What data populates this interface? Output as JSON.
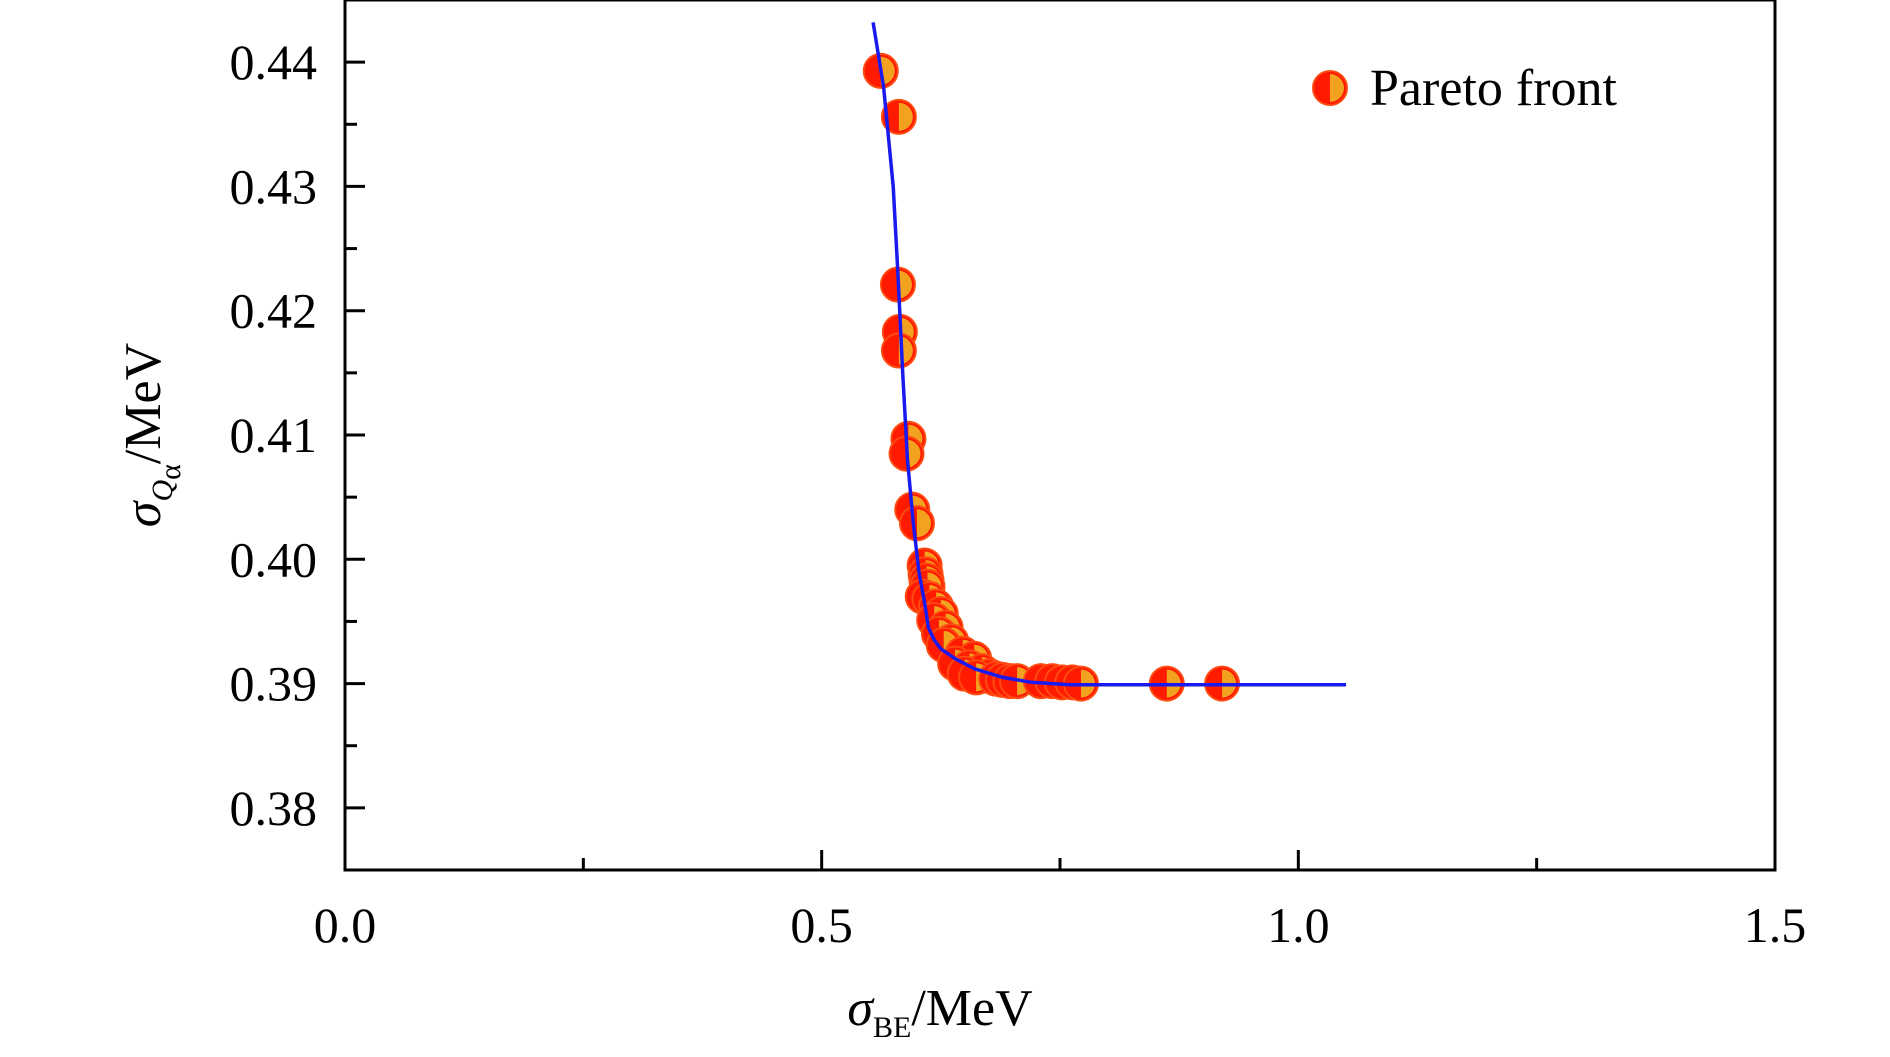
{
  "chart_data": {
    "type": "scatter",
    "xlabel": {
      "symbol": "σ",
      "sub": "BE",
      "unit": "/MeV"
    },
    "ylabel": {
      "symbol": "σ",
      "sub": "Q",
      "subsub": "α",
      "unit": "/MeV"
    },
    "xlim": [
      0.0,
      1.5
    ],
    "ylim": [
      0.375,
      0.445
    ],
    "x_ticks": [
      {
        "value": 0.0,
        "label": "0.0"
      },
      {
        "value": 0.5,
        "label": "0.5"
      },
      {
        "value": 1.0,
        "label": "1.0"
      },
      {
        "value": 1.5,
        "label": "1.5"
      }
    ],
    "x_minor_ticks": [
      0.25,
      0.75,
      1.25
    ],
    "y_ticks": [
      {
        "value": 0.38,
        "label": "0.38"
      },
      {
        "value": 0.39,
        "label": "0.39"
      },
      {
        "value": 0.4,
        "label": "0.40"
      },
      {
        "value": 0.41,
        "label": "0.41"
      },
      {
        "value": 0.42,
        "label": "0.42"
      },
      {
        "value": 0.43,
        "label": "0.43"
      },
      {
        "value": 0.44,
        "label": "0.44"
      }
    ],
    "y_minor_ticks": [
      0.385,
      0.395,
      0.405,
      0.415,
      0.425,
      0.435
    ],
    "grid": false,
    "legend_position": "top-right",
    "series": [
      {
        "name": "Pareto front",
        "kind": "scatter",
        "marker_color": "#ff1a00",
        "marker_half_color": "#f2a21e",
        "points": [
          [
            0.562,
            0.4393
          ],
          [
            0.581,
            0.4356
          ],
          [
            0.58,
            0.4221
          ],
          [
            0.582,
            0.4183
          ],
          [
            0.581,
            0.4168
          ],
          [
            0.591,
            0.4097
          ],
          [
            0.589,
            0.4085
          ],
          [
            0.595,
            0.404
          ],
          [
            0.6,
            0.4029
          ],
          [
            0.608,
            0.3995
          ],
          [
            0.609,
            0.3988
          ],
          [
            0.61,
            0.3983
          ],
          [
            0.611,
            0.3978
          ],
          [
            0.606,
            0.397
          ],
          [
            0.613,
            0.3968
          ],
          [
            0.62,
            0.3962
          ],
          [
            0.625,
            0.3956
          ],
          [
            0.618,
            0.3951
          ],
          [
            0.63,
            0.3945
          ],
          [
            0.623,
            0.394
          ],
          [
            0.636,
            0.3934
          ],
          [
            0.628,
            0.3931
          ],
          [
            0.648,
            0.3924
          ],
          [
            0.66,
            0.392
          ],
          [
            0.64,
            0.3916
          ],
          [
            0.655,
            0.3913
          ],
          [
            0.668,
            0.391
          ],
          [
            0.65,
            0.3908
          ],
          [
            0.676,
            0.3906
          ],
          [
            0.662,
            0.3905
          ],
          [
            0.683,
            0.3904
          ],
          [
            0.69,
            0.3903
          ],
          [
            0.698,
            0.3902
          ],
          [
            0.705,
            0.3902
          ],
          [
            0.73,
            0.3902
          ],
          [
            0.742,
            0.3902
          ],
          [
            0.752,
            0.3901
          ],
          [
            0.763,
            0.3901
          ],
          [
            0.772,
            0.39
          ],
          [
            0.862,
            0.39
          ],
          [
            0.92,
            0.39
          ]
        ]
      },
      {
        "name": "",
        "kind": "line",
        "color": "#1a1aee",
        "points": [
          [
            0.554,
            0.4432
          ],
          [
            0.565,
            0.438
          ],
          [
            0.575,
            0.43
          ],
          [
            0.58,
            0.423
          ],
          [
            0.585,
            0.415
          ],
          [
            0.59,
            0.408
          ],
          [
            0.596,
            0.403
          ],
          [
            0.602,
            0.399
          ],
          [
            0.608,
            0.3965
          ],
          [
            0.612,
            0.3945
          ],
          [
            0.618,
            0.3935
          ],
          [
            0.625,
            0.3928
          ],
          [
            0.64,
            0.392
          ],
          [
            0.66,
            0.3912
          ],
          [
            0.69,
            0.3905
          ],
          [
            0.72,
            0.3901
          ],
          [
            0.76,
            0.3899
          ],
          [
            0.85,
            0.3899
          ],
          [
            1.05,
            0.3899
          ]
        ]
      }
    ],
    "legend": [
      {
        "label": "Pareto front",
        "series_index": 0
      }
    ]
  }
}
